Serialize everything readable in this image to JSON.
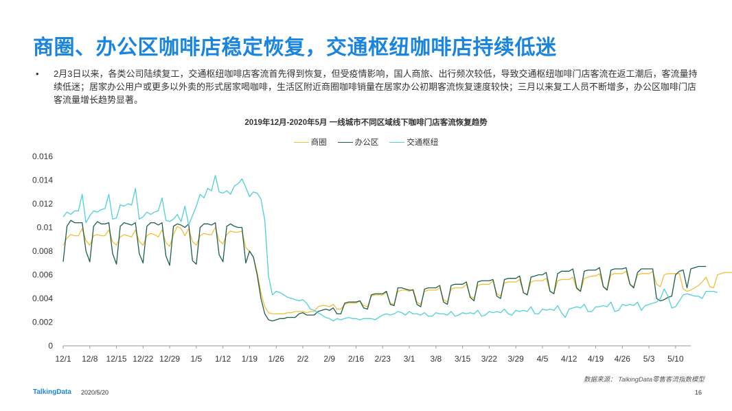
{
  "page": {
    "title": "商圈、办公区咖啡店稳定恢复，交通枢纽咖啡店持续低迷",
    "bullet_symbol": "•",
    "bullet": "2月3日以来，各类公司陆续复工，交通枢纽咖啡店客流首先得到恢复，但受疫情影响，国人商旅、出行频次较低，导致交通枢纽咖啡门店客流在返工潮后，客流量持续低迷；居家办公用户或更多以外卖的形式居家喝咖啡，生活区附近商圈咖啡销量在居家办公初期客流恢复速度较快；三月以来复工人员不断增多，办公区咖啡门店客流量增长趋势显著。",
    "source": "数据来源： TalkingData零售客流指数模型",
    "logo": "TalkingData",
    "date": "2020/5/20",
    "page_number": "16"
  },
  "colors": {
    "title": "#1a85e0",
    "商圈": "#f2be38",
    "办公区": "#1b5e4a",
    "交通枢纽": "#4dd0d8"
  },
  "chart_data": {
    "type": "line",
    "title": "2019年12月-2020年5月   一线城市不同区域线下咖啡门店客流恢复趋势",
    "xlabel": "",
    "ylabel": "",
    "ylim": [
      0,
      0.016
    ],
    "yticks": [
      "0",
      "0.002",
      "0.004",
      "0.006",
      "0.008",
      "0.01",
      "0.012",
      "0.014",
      "0.016"
    ],
    "x_ticks": [
      "12/1",
      "12/8",
      "12/15",
      "12/22",
      "12/29",
      "1/5",
      "1/12",
      "1/19",
      "1/26",
      "2/2",
      "2/9",
      "2/16",
      "2/23",
      "3/1",
      "3/8",
      "3/15",
      "3/22",
      "3/29",
      "4/5",
      "4/12",
      "4/19",
      "4/26",
      "5/3",
      "5/10"
    ],
    "x_start": "2019-12-01",
    "x_end": "2020-05-14",
    "grid": false,
    "legend_position": "top-center",
    "series": [
      {
        "name": "商圈",
        "values": [
          0.0085,
          0.0091,
          0.0094,
          0.0093,
          0.0093,
          0.0099,
          0.0089,
          0.0085,
          0.0093,
          0.0094,
          0.0093,
          0.0093,
          0.0098,
          0.0088,
          0.0085,
          0.0092,
          0.0094,
          0.0093,
          0.0092,
          0.0098,
          0.0088,
          0.0085,
          0.0093,
          0.0095,
          0.0094,
          0.0092,
          0.0098,
          0.0087,
          0.0084,
          0.0094,
          0.0101,
          0.0099,
          0.0093,
          0.0099,
          0.0088,
          0.0085,
          0.0093,
          0.0095,
          0.0094,
          0.0094,
          0.01,
          0.0089,
          0.0086,
          0.0094,
          0.0097,
          0.0096,
          0.0096,
          0.0097,
          0.0083,
          0.008,
          0.0075,
          0.0062,
          0.0045,
          0.0033,
          0.0028,
          0.0027,
          0.0027,
          0.0027,
          0.0027,
          0.0028,
          0.0028,
          0.0029,
          0.0029,
          0.0029,
          0.0028,
          0.0029,
          0.0029,
          0.0033,
          0.0034,
          0.0034,
          0.0033,
          0.0035,
          0.0031,
          0.0031,
          0.0035,
          0.0036,
          0.0036,
          0.0036,
          0.0038,
          0.0034,
          0.0033,
          0.0042,
          0.0043,
          0.0043,
          0.0043,
          0.0045,
          0.0036,
          0.0035,
          0.0046,
          0.0047,
          0.0047,
          0.0046,
          0.0048,
          0.0037,
          0.0035,
          0.0046,
          0.0047,
          0.0047,
          0.0047,
          0.0049,
          0.0039,
          0.0037,
          0.0048,
          0.0049,
          0.0049,
          0.0049,
          0.0052,
          0.0042,
          0.004,
          0.0051,
          0.0052,
          0.0052,
          0.0052,
          0.0055,
          0.0044,
          0.0042,
          0.0053,
          0.0054,
          0.0054,
          0.0054,
          0.0056,
          0.0045,
          0.0043,
          0.0054,
          0.0055,
          0.0055,
          0.0055,
          0.0057,
          0.0046,
          0.0044,
          0.0055,
          0.0056,
          0.0056,
          0.0056,
          0.0058,
          0.0048,
          0.0046,
          0.0057,
          0.0058,
          0.0059,
          0.0059,
          0.0061,
          0.005,
          0.0048,
          0.006,
          0.0061,
          0.0061,
          0.0061,
          0.0063,
          0.0052,
          0.005,
          0.006,
          0.0061,
          0.0061,
          0.0061,
          0.0063,
          0.0052,
          0.005,
          0.006,
          0.0061,
          0.0061,
          0.0061,
          0.0061,
          0.0048,
          0.0046,
          0.0047,
          0.0049,
          0.0051,
          0.0054,
          0.0058,
          0.005,
          0.0049,
          0.006,
          0.0061,
          0.0062,
          0.0062,
          0.0062
        ]
      },
      {
        "name": "办公区",
        "values": [
          0.0071,
          0.0101,
          0.0106,
          0.0104,
          0.0104,
          0.0104,
          0.008,
          0.0071,
          0.0101,
          0.0105,
          0.0103,
          0.0103,
          0.0104,
          0.0078,
          0.0069,
          0.0101,
          0.0104,
          0.0103,
          0.0102,
          0.0104,
          0.0078,
          0.007,
          0.0101,
          0.0104,
          0.0104,
          0.0102,
          0.0104,
          0.0076,
          0.0068,
          0.0101,
          0.0103,
          0.0102,
          0.01,
          0.0103,
          0.0072,
          0.0069,
          0.01,
          0.0103,
          0.0103,
          0.0102,
          0.0104,
          0.0077,
          0.0071,
          0.0101,
          0.0103,
          0.0101,
          0.01,
          0.01,
          0.007,
          0.008,
          0.0075,
          0.006,
          0.004,
          0.0027,
          0.0022,
          0.0021,
          0.0022,
          0.0023,
          0.0023,
          0.0024,
          0.0024,
          0.0024,
          0.0027,
          0.0028,
          0.0026,
          0.0026,
          0.0026,
          0.0029,
          0.003,
          0.0031,
          0.003,
          0.0032,
          0.0027,
          0.0027,
          0.0036,
          0.0037,
          0.0037,
          0.0037,
          0.0038,
          0.0032,
          0.0031,
          0.0043,
          0.0044,
          0.0044,
          0.0044,
          0.0046,
          0.0035,
          0.0034,
          0.0049,
          0.0049,
          0.0048,
          0.0047,
          0.0047,
          0.0035,
          0.0033,
          0.0048,
          0.0049,
          0.0049,
          0.0049,
          0.0051,
          0.0037,
          0.0035,
          0.0051,
          0.0052,
          0.0052,
          0.0052,
          0.0054,
          0.0041,
          0.0038,
          0.0054,
          0.0055,
          0.0055,
          0.0055,
          0.0056,
          0.0042,
          0.004,
          0.0056,
          0.0057,
          0.0057,
          0.0057,
          0.0059,
          0.0045,
          0.0043,
          0.0058,
          0.0059,
          0.006,
          0.006,
          0.0062,
          0.0046,
          0.0044,
          0.0061,
          0.0063,
          0.0063,
          0.0063,
          0.0065,
          0.0049,
          0.0046,
          0.0063,
          0.0064,
          0.0064,
          0.0064,
          0.0066,
          0.005,
          0.0047,
          0.0064,
          0.0065,
          0.0065,
          0.0065,
          0.0066,
          0.0052,
          0.0049,
          0.0062,
          0.0065,
          0.0065,
          0.0065,
          0.0065,
          0.004,
          0.0038,
          0.0039,
          0.0041,
          0.0042,
          0.006,
          0.0063,
          0.0064,
          0.0049,
          0.0065,
          0.0066,
          0.0067,
          0.0067,
          0.0067
        ]
      },
      {
        "name": "交通枢纽",
        "values": [
          0.0109,
          0.0113,
          0.0111,
          0.0114,
          0.0114,
          0.0128,
          0.0104,
          0.011,
          0.0114,
          0.0113,
          0.0115,
          0.0116,
          0.0128,
          0.0107,
          0.0108,
          0.0119,
          0.0118,
          0.012,
          0.0119,
          0.0133,
          0.0107,
          0.0109,
          0.0113,
          0.0111,
          0.0113,
          0.0114,
          0.0125,
          0.0106,
          0.0105,
          0.0107,
          0.0111,
          0.0105,
          0.0118,
          0.0102,
          0.011,
          0.0118,
          0.0128,
          0.0125,
          0.0133,
          0.0131,
          0.0144,
          0.013,
          0.0129,
          0.0131,
          0.0128,
          0.0135,
          0.0137,
          0.0141,
          0.0134,
          0.0126,
          0.013,
          0.0129,
          0.0124,
          0.0106,
          0.0059,
          0.0043,
          0.0046,
          0.0045,
          0.0043,
          0.0041,
          0.004,
          0.0039,
          0.0038,
          0.0039,
          0.0036,
          0.0031,
          0.003,
          0.0028,
          0.0026,
          0.0024,
          0.0023,
          0.0021,
          0.0023,
          0.0022,
          0.0023,
          0.0024,
          0.0023,
          0.0023,
          0.0022,
          0.0023,
          0.0023,
          0.0023,
          0.0022,
          0.0024,
          0.0026,
          0.0027,
          0.0026,
          0.0027,
          0.0029,
          0.0028,
          0.0026,
          0.0029,
          0.0027,
          0.0027,
          0.0026,
          0.0028,
          0.0025,
          0.0025,
          0.0028,
          0.0027,
          0.0027,
          0.0026,
          0.0029,
          0.0025,
          0.0026,
          0.0028,
          0.0027,
          0.0028,
          0.0027,
          0.003,
          0.0025,
          0.0026,
          0.0029,
          0.0028,
          0.0029,
          0.0028,
          0.0031,
          0.0027,
          0.0026,
          0.003,
          0.0029,
          0.003,
          0.0029,
          0.0033,
          0.0027,
          0.0027,
          0.0031,
          0.003,
          0.0031,
          0.003,
          0.0034,
          0.0028,
          0.0024,
          0.0031,
          0.0032,
          0.0033,
          0.0032,
          0.0035,
          0.0029,
          0.0029,
          0.0033,
          0.0033,
          0.0034,
          0.0033,
          0.0037,
          0.0029,
          0.003,
          0.0035,
          0.0034,
          0.0035,
          0.0034,
          0.0037,
          0.003,
          0.0034,
          0.0035,
          0.0036,
          0.0037,
          0.004,
          0.0048,
          0.0042,
          0.0032,
          0.0033,
          0.0038,
          0.0043,
          0.0044,
          0.0043,
          0.0042,
          0.0042,
          0.004,
          0.0046,
          0.0046,
          0.0046,
          0.0045
        ]
      }
    ]
  }
}
